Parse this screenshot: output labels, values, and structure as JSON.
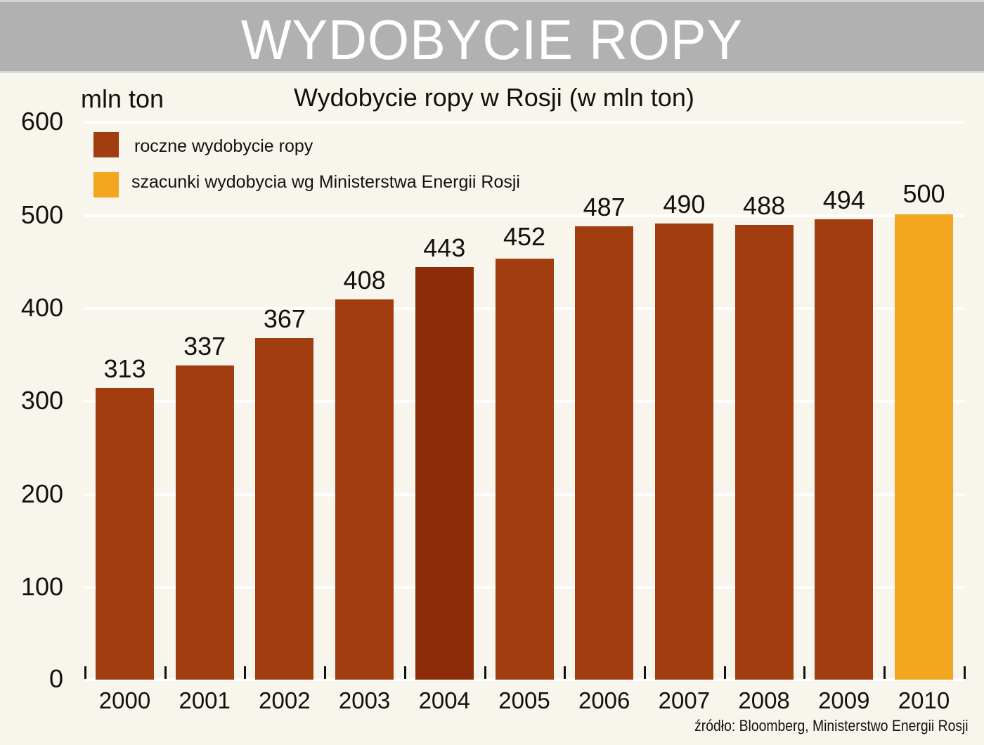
{
  "header": {
    "title": "WYDOBYCIE ROPY"
  },
  "chart": {
    "unit_label": "mln ton",
    "title": "Wydobycie ropy w Rosji (w mln ton)",
    "legend": [
      {
        "label": "roczne wydobycie ropy",
        "color": "#a23d10"
      },
      {
        "label": "szacunki wydobycia wg Ministerstwa Energii Rosji",
        "color": "#f2a51f"
      }
    ],
    "y_ticks": [
      "600",
      "500",
      "400",
      "300",
      "200",
      "100",
      "0"
    ],
    "source": "źródło: Bloomberg, Ministerstwo Energii Rosji"
  },
  "colors": {
    "actual": "#a23d10",
    "actual_highlight": "#8c2c08",
    "estimate": "#f2a51f",
    "background": "#f8f6ec",
    "header_bg": "#b1b1b1",
    "gridline": "#ffffff"
  },
  "chart_data": {
    "type": "bar",
    "title": "Wydobycie ropy w Rosji (w mln ton)",
    "subtitle": "WYDOBYCIE ROPY",
    "xlabel": "",
    "ylabel": "mln ton",
    "ylim": [
      0,
      600
    ],
    "y_ticks": [
      0,
      100,
      200,
      300,
      400,
      500,
      600
    ],
    "grid": true,
    "legend_position": "top-left",
    "categories": [
      "2000",
      "2001",
      "2002",
      "2003",
      "2004",
      "2005",
      "2006",
      "2007",
      "2008",
      "2009",
      "2010"
    ],
    "values": [
      313,
      337,
      367,
      408,
      443,
      452,
      487,
      490,
      488,
      494,
      500
    ],
    "series": [
      {
        "name": "roczne wydobycie ropy",
        "values": [
          313,
          337,
          367,
          408,
          443,
          452,
          487,
          490,
          488,
          494,
          null
        ]
      },
      {
        "name": "szacunki wydobycia wg Ministerstwa Energii Rosji",
        "values": [
          null,
          null,
          null,
          null,
          null,
          null,
          null,
          null,
          null,
          null,
          500
        ]
      }
    ],
    "data_labels": [
      "313",
      "337",
      "367",
      "408",
      "443",
      "452",
      "487",
      "490",
      "488",
      "494",
      "500"
    ],
    "annotations": [
      "źródło: Bloomberg, Ministerstwo Energii Rosji"
    ]
  }
}
